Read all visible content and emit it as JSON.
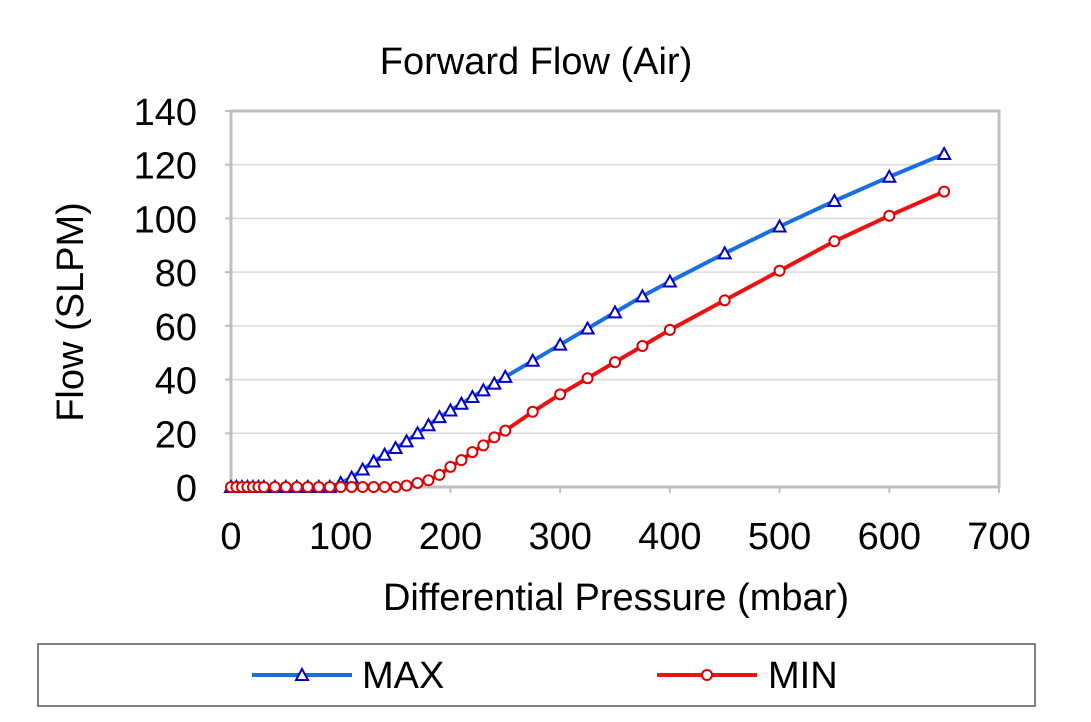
{
  "chart_data": {
    "type": "line",
    "title": "Forward Flow (Air)",
    "xlabel": "Differential Pressure (mbar)",
    "ylabel": "Flow (SLPM)",
    "xlim": [
      0,
      700
    ],
    "ylim": [
      0,
      140
    ],
    "xticks": [
      0,
      100,
      200,
      300,
      400,
      500,
      600,
      700
    ],
    "yticks": [
      0,
      20,
      40,
      60,
      80,
      100,
      120,
      140
    ],
    "grid": "horizontal",
    "legend_position": "bottom",
    "series": [
      {
        "name": "MAX",
        "color": "#1a6fdf",
        "marker_color": "#0000cc",
        "marker": "triangle",
        "x": [
          0,
          5,
          10,
          15,
          20,
          25,
          30,
          40,
          50,
          60,
          70,
          80,
          90,
          100,
          110,
          120,
          130,
          140,
          150,
          160,
          170,
          180,
          190,
          200,
          210,
          220,
          230,
          240,
          250,
          275,
          300,
          325,
          350,
          375,
          400,
          450,
          500,
          550,
          600,
          650
        ],
        "y": [
          0,
          0,
          0,
          0,
          0,
          0,
          0,
          0,
          0,
          0,
          0,
          0,
          0,
          1.5,
          3.5,
          6.5,
          9.5,
          12,
          14.5,
          17,
          20,
          23,
          26,
          28.5,
          31,
          33.5,
          36,
          38.5,
          41,
          47,
          53,
          59,
          65,
          71,
          76.5,
          87,
          97,
          106.5,
          115.5,
          124
        ]
      },
      {
        "name": "MIN",
        "color": "#ee1111",
        "marker_color": "#dd0000",
        "marker": "circle",
        "x": [
          0,
          5,
          10,
          15,
          20,
          25,
          30,
          40,
          50,
          60,
          70,
          80,
          90,
          100,
          110,
          120,
          130,
          140,
          150,
          160,
          170,
          180,
          190,
          200,
          210,
          220,
          230,
          240,
          250,
          275,
          300,
          325,
          350,
          375,
          400,
          450,
          500,
          550,
          600,
          650
        ],
        "y": [
          0,
          0,
          0,
          0,
          0,
          0,
          0,
          0,
          0,
          0,
          0,
          0,
          0,
          0,
          0,
          0,
          0,
          0,
          0,
          0.5,
          1.5,
          2.5,
          4.5,
          7.5,
          10,
          13,
          15.5,
          18.5,
          21,
          28,
          34.5,
          40.5,
          46.5,
          52.5,
          58.5,
          69.5,
          80.5,
          91.5,
          101,
          110
        ]
      }
    ]
  }
}
